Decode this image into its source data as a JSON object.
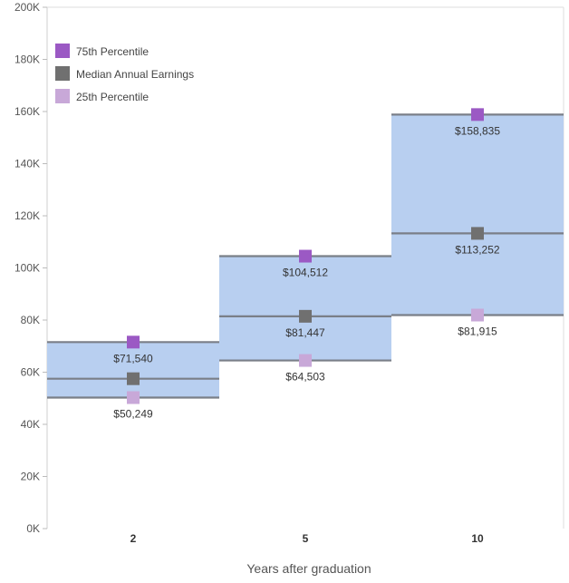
{
  "chart_data": {
    "type": "bar",
    "title": "",
    "xlabel": "Years after graduation",
    "ylabel": "",
    "ylim": [
      0,
      200000
    ],
    "yticks": [
      {
        "value": 0,
        "label": "0K"
      },
      {
        "value": 20000,
        "label": "20K"
      },
      {
        "value": 40000,
        "label": "40K"
      },
      {
        "value": 60000,
        "label": "60K"
      },
      {
        "value": 80000,
        "label": "80K"
      },
      {
        "value": 100000,
        "label": "100K"
      },
      {
        "value": 120000,
        "label": "120K"
      },
      {
        "value": 140000,
        "label": "140K"
      },
      {
        "value": 160000,
        "label": "160K"
      },
      {
        "value": 180000,
        "label": "180K"
      },
      {
        "value": 200000,
        "label": "200K"
      }
    ],
    "categories": [
      "2",
      "5",
      "10"
    ],
    "series": [
      {
        "name": "75th Percentile",
        "values": [
          71540,
          104512,
          158835
        ],
        "labels": [
          "$71,540",
          "$104,512",
          "$158,835"
        ],
        "color": "#9b59c4"
      },
      {
        "name": "Median Annual Earnings",
        "values": [
          57500,
          81447,
          113252
        ],
        "labels": [
          "",
          "$81,447",
          "$113,252"
        ],
        "color": "#707070"
      },
      {
        "name": "25th Percentile",
        "values": [
          50249,
          64503,
          81915
        ],
        "labels": [
          "$50,249",
          "$64,503",
          "$81,915"
        ],
        "color": "#c8a8d8"
      }
    ],
    "band_color": "#b8cff0",
    "line_color": "#7a7f88",
    "legend_position": "top-left",
    "grid": false
  }
}
